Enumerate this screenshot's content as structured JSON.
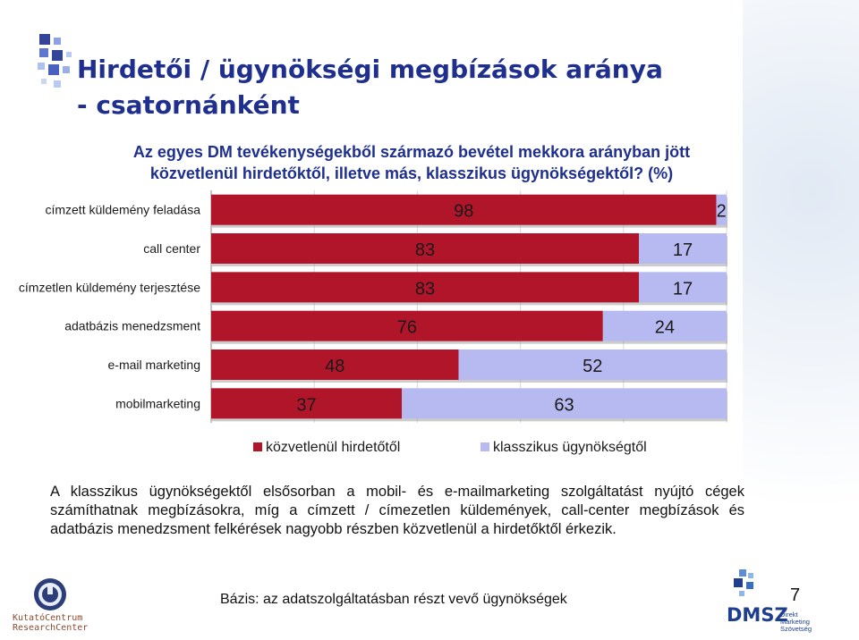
{
  "title_line1": "Hirdetői / ügynökségi megbízások aránya",
  "title_line2": "- csatornánként",
  "chart_data": {
    "type": "bar",
    "orientation": "horizontal",
    "stacked": true,
    "title": "Az egyes DM tevékenységekből származó bevétel mekkora arányban jött közvetlenül hirdetőktől, illetve más, klasszikus ügynökségektől? (%)",
    "categories": [
      "címzett küldemény feladása",
      "call center",
      "címzetlen küldemény terjesztése",
      "adatbázis menedzsment",
      "e-mail marketing",
      "mobilmarketing"
    ],
    "series": [
      {
        "name": "közvetlenül hirdetőtől",
        "values": [
          98,
          83,
          83,
          76,
          48,
          37
        ],
        "color": "#b0152a"
      },
      {
        "name": "klasszikus ügynökségtől",
        "values": [
          2,
          17,
          17,
          24,
          52,
          63
        ],
        "color": "#b7b9f1"
      }
    ],
    "xlim": [
      0,
      100
    ],
    "grid": true,
    "legend": "bottom",
    "data_labels": true
  },
  "note": "A klasszikus ügynökségektől elsősorban a mobil- és e-mailmarketing szolgáltatást nyújtó cégek számíthatnak megbízásokra, míg a címzett / címezetlen küldemények, call-center megbízások és adatbázis menedzsment felkérések nagyobb részben közvetlenül a hirdetőktől érkezik.",
  "footer": "Bázis: az adatszolgáltatásban részt vevő ügynökségek",
  "page_number": "7",
  "logos": {
    "left_line1": "KutatóCentrum",
    "left_line2": "ResearchCenter",
    "right_name": "DMSZ",
    "right_sub1": "Direkt",
    "right_sub2": "Marketing",
    "right_sub3": "Szövetség"
  }
}
